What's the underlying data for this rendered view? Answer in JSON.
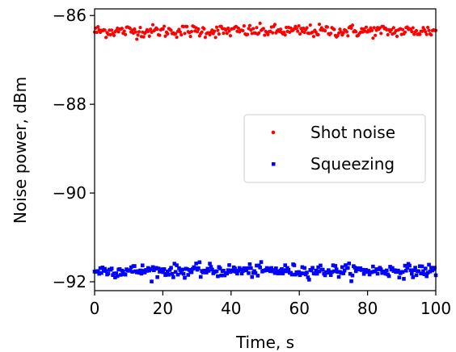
{
  "chart_data": {
    "type": "scatter",
    "xlabel": "Time, s",
    "ylabel": "Noise power, dBm",
    "xlim": [
      0,
      100
    ],
    "ylim": [
      -92.2,
      -85.85
    ],
    "xticks": [
      0,
      20,
      40,
      60,
      80,
      100
    ],
    "yticks": [
      -86,
      -88,
      -90,
      -92
    ],
    "xtick_labels": [
      "0",
      "20",
      "40",
      "60",
      "80",
      "100"
    ],
    "ytick_labels": [
      "−86",
      "−88",
      "−90",
      "−92"
    ],
    "grid": false,
    "legend_position": "center-right",
    "series": [
      {
        "name": "Shot noise",
        "marker": "circle",
        "color": "#ff0000",
        "mean": -86.35,
        "spread": 0.07,
        "x_range": [
          0,
          100
        ],
        "n_points": 300
      },
      {
        "name": "Squeezing",
        "marker": "square",
        "color": "#0000ff",
        "mean": -91.75,
        "spread": 0.07,
        "x_range": [
          0,
          100
        ],
        "n_points": 300
      }
    ]
  }
}
